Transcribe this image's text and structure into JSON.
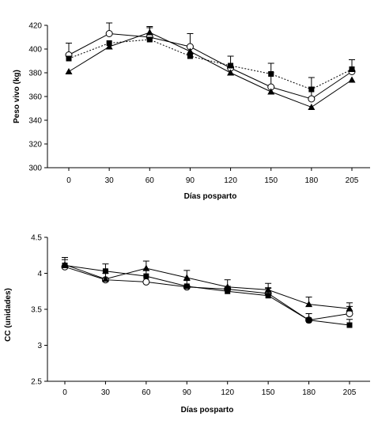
{
  "chart_data": [
    {
      "type": "line",
      "xlabel": "Días posparto",
      "ylabel": "Peso vivo (kg)",
      "categories": [
        "0",
        "30",
        "60",
        "90",
        "120",
        "150",
        "180",
        "205"
      ],
      "ylim": [
        300,
        420
      ],
      "yticks": [
        300,
        320,
        340,
        360,
        380,
        400,
        420
      ],
      "grid": false,
      "series": [
        {
          "marker": "open-circle",
          "line": "solid",
          "values": [
            395,
            413,
            410,
            402,
            384,
            368,
            358,
            381
          ],
          "error": [
            10,
            9,
            8,
            11,
            10,
            12,
            10,
            10
          ]
        },
        {
          "marker": "filled-square",
          "line": "dotted",
          "values": [
            392,
            405,
            408,
            394,
            386,
            379,
            366,
            383
          ],
          "error": [
            0,
            0,
            0,
            0,
            0,
            9,
            10,
            0
          ]
        },
        {
          "marker": "filled-triangle",
          "line": "solid",
          "values": [
            381,
            402,
            414,
            398,
            380,
            364,
            351,
            374
          ],
          "error": [
            0,
            0,
            5,
            0,
            0,
            0,
            0,
            0
          ]
        }
      ]
    },
    {
      "type": "line",
      "xlabel": "Días posparto",
      "ylabel": "CC (unidades)",
      "categories": [
        "0",
        "30",
        "60",
        "90",
        "120",
        "150",
        "180",
        "205"
      ],
      "ylim": [
        2.5,
        4.5
      ],
      "yticks": [
        "2.5",
        "3",
        "3.5",
        "4",
        "4.5"
      ],
      "grid": false,
      "series": [
        {
          "marker": "open-circle",
          "line": "solid",
          "values": [
            4.09,
            3.91,
            3.88,
            3.81,
            3.78,
            3.72,
            3.35,
            3.44
          ],
          "error": [
            0.1,
            0,
            0,
            0,
            0,
            0.08,
            0.09,
            0.1
          ]
        },
        {
          "marker": "filled-square",
          "line": "solid",
          "values": [
            4.11,
            4.03,
            3.96,
            3.82,
            3.75,
            3.69,
            3.35,
            3.28
          ],
          "error": [
            0.11,
            0.1,
            0.08,
            0.08,
            0.07,
            0.1,
            0.09,
            0.08
          ]
        },
        {
          "marker": "filled-triangle",
          "line": "solid",
          "values": [
            4.12,
            3.92,
            4.07,
            3.94,
            3.81,
            3.77,
            3.57,
            3.51
          ],
          "error": [
            0.1,
            0.08,
            0.1,
            0.1,
            0.1,
            0.09,
            0.1,
            0.08
          ]
        }
      ]
    }
  ]
}
